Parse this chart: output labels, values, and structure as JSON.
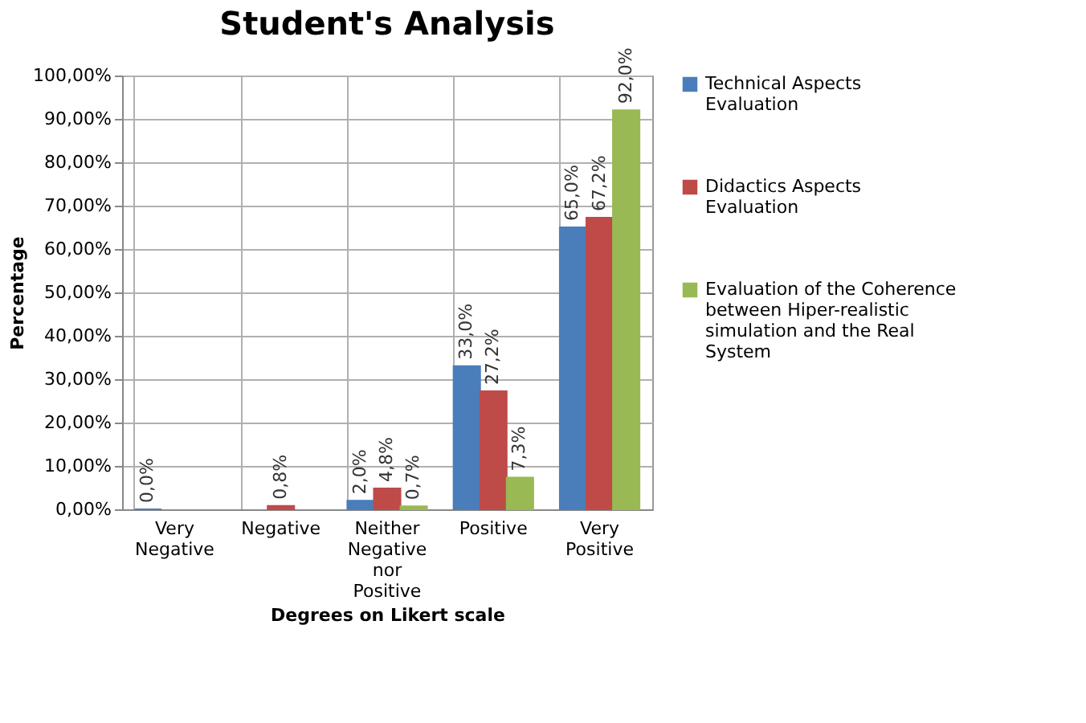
{
  "chart_data": {
    "type": "bar",
    "title": "Student's Analysis",
    "xlabel": "Degrees on Likert scale",
    "ylabel": "Percentage",
    "categories": [
      "Very Negative",
      "Negative",
      "Neither Negative nor Positive",
      "Positive",
      "Very Positive"
    ],
    "series": [
      {
        "name": "Technical Aspects Evaluation",
        "color": "#4a7ebb",
        "values": [
          0.0,
          null,
          2.0,
          33.0,
          65.0
        ],
        "value_labels": [
          "0,0%",
          null,
          "2,0%",
          "33,0%",
          "65,0%"
        ]
      },
      {
        "name": "Didactics Aspects Evaluation",
        "color": "#be4b48",
        "values": [
          null,
          0.8,
          4.8,
          27.2,
          67.2
        ],
        "value_labels": [
          null,
          "0,8%",
          "4,8%",
          "27,2%",
          "67,2%"
        ]
      },
      {
        "name": "Evaluation of the Coherence between Hiper-realistic simulation and the Real System",
        "color": "#98b954",
        "values": [
          null,
          null,
          0.7,
          7.3,
          92.0
        ],
        "value_labels": [
          null,
          null,
          "0,7%",
          "7,3%",
          "92,0%"
        ]
      }
    ],
    "ylim": [
      0,
      100
    ],
    "yticks": [
      {
        "value": 0,
        "label": "0,00%"
      },
      {
        "value": 10,
        "label": "10,00%"
      },
      {
        "value": 20,
        "label": "20,00%"
      },
      {
        "value": 30,
        "label": "30,00%"
      },
      {
        "value": 40,
        "label": "40,00%"
      },
      {
        "value": 50,
        "label": "50,00%"
      },
      {
        "value": 60,
        "label": "60,00%"
      },
      {
        "value": 70,
        "label": "70,00%"
      },
      {
        "value": 80,
        "label": "80,00%"
      },
      {
        "value": 90,
        "label": "90,00%"
      },
      {
        "value": 100,
        "label": "100,00%"
      }
    ],
    "grid": true,
    "legend": "right"
  }
}
